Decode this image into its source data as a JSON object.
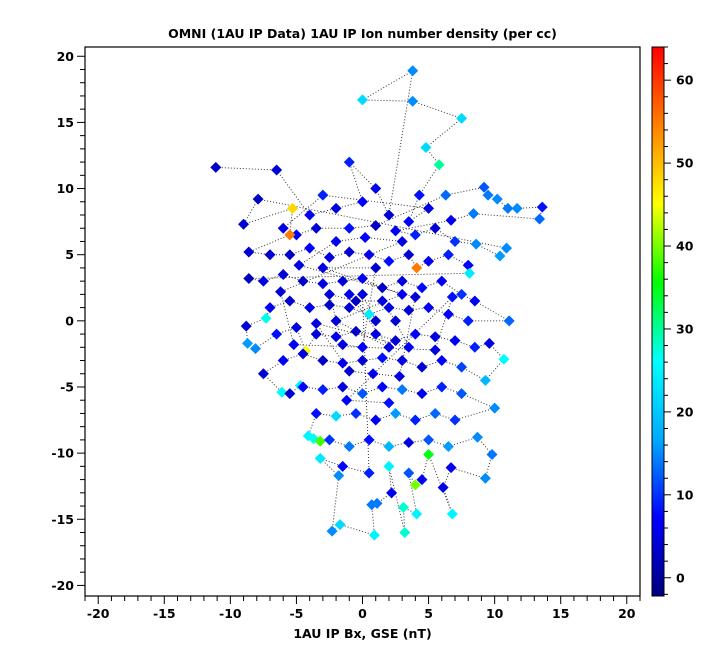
{
  "chart_data": {
    "type": "scatter",
    "title": "OMNI (1AU IP Data)  1AU IP Ion number density (per cc)",
    "xlabel": "1AU IP Bx, GSE (nT)",
    "ylabel": "",
    "xlim": [
      -21,
      21
    ],
    "ylim": [
      -20.8,
      20.7
    ],
    "xticks": [
      -20,
      -15,
      -10,
      -5,
      0,
      5,
      10,
      15,
      20
    ],
    "yticks": [
      -20,
      -15,
      -10,
      -5,
      0,
      5,
      10,
      15,
      20
    ],
    "grid": false,
    "connected": true,
    "colorbar": {
      "label": "",
      "range": [
        -2.2,
        64
      ],
      "ticks": [
        0,
        10,
        20,
        30,
        40,
        50,
        60
      ],
      "colormap": [
        "#00007f",
        "#0000ff",
        "#00aaff",
        "#00ffff",
        "#00ff00",
        "#ffff00",
        "#ff8000",
        "#ff0000"
      ]
    },
    "points_format": [
      "Bx_nT",
      "y",
      "density_per_cc"
    ],
    "points": [
      [
        -11.1,
        11.6,
        3
      ],
      [
        -6.5,
        11.4,
        4
      ],
      [
        -4,
        8,
        6
      ],
      [
        -2,
        8.5,
        5
      ],
      [
        0,
        9,
        7
      ],
      [
        -1,
        12,
        9
      ],
      [
        1,
        10,
        6
      ],
      [
        2,
        8,
        4
      ],
      [
        3.8,
        18.9,
        15
      ],
      [
        0,
        16.7,
        22
      ],
      [
        3.8,
        16.6,
        15
      ],
      [
        7.5,
        15.3,
        22
      ],
      [
        4.8,
        13.1,
        22
      ],
      [
        5.8,
        11.8,
        30
      ],
      [
        4.3,
        9.5,
        8
      ],
      [
        3.5,
        7.5,
        7
      ],
      [
        5,
        8.5,
        5
      ],
      [
        -3,
        9.5,
        9
      ],
      [
        -6,
        7,
        5
      ],
      [
        -5,
        6.5,
        6
      ],
      [
        -3.5,
        7,
        4
      ],
      [
        -1,
        7,
        8
      ],
      [
        1,
        7.2,
        3
      ],
      [
        6.3,
        9.5,
        13
      ],
      [
        9.2,
        10.1,
        12
      ],
      [
        9.5,
        9.5,
        14
      ],
      [
        10.2,
        9.2,
        15
      ],
      [
        11,
        8.5,
        14
      ],
      [
        11.7,
        8.5,
        15
      ],
      [
        13.6,
        8.6,
        8
      ],
      [
        13.4,
        7.7,
        13
      ],
      [
        8.4,
        8.1,
        14
      ],
      [
        6.7,
        7.6,
        6
      ],
      [
        2.5,
        6.8,
        6
      ],
      [
        4,
        6.5,
        9
      ],
      [
        5.5,
        7,
        4
      ],
      [
        7,
        6,
        10
      ],
      [
        8.6,
        5.8,
        15
      ],
      [
        10.4,
        4.9,
        16
      ],
      [
        10.9,
        5.5,
        15
      ],
      [
        -7.9,
        9.2,
        3
      ],
      [
        -9,
        7.3,
        4
      ],
      [
        -5.3,
        8.5,
        48
      ],
      [
        -5.5,
        6.5,
        55
      ],
      [
        -8.6,
        5.2,
        4
      ],
      [
        -7,
        5,
        4
      ],
      [
        -5.5,
        5,
        3
      ],
      [
        -4,
        5.5,
        7
      ],
      [
        -2.5,
        4.8,
        5
      ],
      [
        -1,
        5.2,
        4
      ],
      [
        0.5,
        5,
        6
      ],
      [
        2,
        4.5,
        8
      ],
      [
        3.5,
        5,
        4
      ],
      [
        4.1,
        4,
        55
      ],
      [
        5,
        4.5,
        6
      ],
      [
        6.5,
        5,
        9
      ],
      [
        8,
        4.2,
        7
      ],
      [
        8.1,
        3.6,
        24
      ],
      [
        -8.6,
        3.2,
        2
      ],
      [
        -7.5,
        3,
        5
      ],
      [
        -6,
        3.5,
        4
      ],
      [
        -4.5,
        3,
        3
      ],
      [
        -3,
        2.8,
        5
      ],
      [
        -1.5,
        3,
        4
      ],
      [
        0,
        3.2,
        6
      ],
      [
        1.5,
        2.5,
        3
      ],
      [
        3,
        3,
        5
      ],
      [
        4.5,
        2.5,
        7
      ],
      [
        6,
        3,
        6
      ],
      [
        7.5,
        2,
        10
      ],
      [
        8.5,
        1.5,
        6
      ],
      [
        11.1,
        0,
        13
      ],
      [
        8,
        0,
        9
      ],
      [
        6.5,
        0.5,
        7
      ],
      [
        5,
        1,
        6
      ],
      [
        3.5,
        0.8,
        4
      ],
      [
        2,
        1,
        5
      ],
      [
        0.5,
        0.5,
        24
      ],
      [
        -1,
        1,
        4
      ],
      [
        -2.5,
        1.2,
        3
      ],
      [
        -4,
        1,
        5
      ],
      [
        -5.5,
        1.5,
        4
      ],
      [
        -7,
        1,
        6
      ],
      [
        -7.3,
        0.2,
        27
      ],
      [
        -8.8,
        -0.4,
        4
      ],
      [
        -8.7,
        -1.7,
        16
      ],
      [
        -8.1,
        -2.1,
        15
      ],
      [
        -6.5,
        -1,
        8
      ],
      [
        -5,
        -0.5,
        5
      ],
      [
        -4.3,
        -2.3,
        45
      ],
      [
        -3.5,
        -1,
        4
      ],
      [
        -2,
        -1.2,
        6
      ],
      [
        -0.5,
        -0.8,
        3
      ],
      [
        1,
        -1,
        5
      ],
      [
        2.5,
        -1.5,
        4
      ],
      [
        4,
        -1,
        7
      ],
      [
        5.5,
        -1.2,
        5
      ],
      [
        7,
        -1.5,
        6
      ],
      [
        8.5,
        -2,
        9
      ],
      [
        9.6,
        -1.7,
        5
      ],
      [
        10.7,
        -2.9,
        26
      ],
      [
        9.3,
        -4.5,
        18
      ],
      [
        7.5,
        -3.5,
        11
      ],
      [
        6,
        -3,
        7
      ],
      [
        4.5,
        -3.5,
        4
      ],
      [
        3,
        -3,
        5
      ],
      [
        1.5,
        -2.8,
        8
      ],
      [
        0,
        -3,
        4
      ],
      [
        -1.5,
        -3.2,
        6
      ],
      [
        -3,
        -3,
        3
      ],
      [
        -4.5,
        -2.5,
        5
      ],
      [
        -6,
        -3,
        6
      ],
      [
        -7.5,
        -4,
        4
      ],
      [
        -6.1,
        -5.4,
        26
      ],
      [
        -5.5,
        -5.5,
        4
      ],
      [
        -4.7,
        -4.9,
        25
      ],
      [
        -4.5,
        -5,
        7
      ],
      [
        -3,
        -5.2,
        9
      ],
      [
        -1.5,
        -5,
        5
      ],
      [
        0,
        -5.5,
        12
      ],
      [
        1.5,
        -5,
        7
      ],
      [
        3,
        -5.2,
        14
      ],
      [
        4.5,
        -5.5,
        6
      ],
      [
        6,
        -5,
        9
      ],
      [
        7.5,
        -5.5,
        12
      ],
      [
        10,
        -6.6,
        15
      ],
      [
        7,
        -7.5,
        10
      ],
      [
        5.5,
        -7,
        13
      ],
      [
        4,
        -7.5,
        9
      ],
      [
        2.5,
        -7,
        16
      ],
      [
        1,
        -7.5,
        6
      ],
      [
        -0.5,
        -7,
        10
      ],
      [
        -2,
        -7.2,
        22
      ],
      [
        -3.5,
        -7,
        8
      ],
      [
        -4.1,
        -8.7,
        25
      ],
      [
        -3.7,
        -8.9,
        27
      ],
      [
        -3.2,
        -9.1,
        38
      ],
      [
        -2.5,
        -9,
        10
      ],
      [
        -1,
        -9.5,
        14
      ],
      [
        0.5,
        -9,
        8
      ],
      [
        2,
        -9.5,
        18
      ],
      [
        3.5,
        -9.2,
        5
      ],
      [
        5,
        -9,
        12
      ],
      [
        6.5,
        -9.5,
        16
      ],
      [
        8.7,
        -8.8,
        15
      ],
      [
        9.8,
        -10.1,
        14
      ],
      [
        9.3,
        -11.9,
        15
      ],
      [
        6.7,
        -11.1,
        6
      ],
      [
        6.1,
        -12.6,
        5
      ],
      [
        6.8,
        -14.6,
        25
      ],
      [
        5,
        -10.1,
        35
      ],
      [
        4.5,
        -12,
        6
      ],
      [
        4,
        -12.4,
        40
      ],
      [
        3.5,
        -11.5,
        12
      ],
      [
        4.1,
        -14.6,
        25
      ],
      [
        3.1,
        -14.1,
        28
      ],
      [
        3.2,
        -16,
        28
      ],
      [
        2,
        -11,
        25
      ],
      [
        2.2,
        -13,
        6
      ],
      [
        1.1,
        -13.8,
        14
      ],
      [
        0.7,
        -13.9,
        14
      ],
      [
        0.9,
        -16.2,
        25
      ],
      [
        -1.7,
        -15.4,
        22
      ],
      [
        -2.3,
        -15.9,
        15
      ],
      [
        -1.8,
        -11.7,
        15
      ],
      [
        -3.2,
        -10.4,
        24
      ],
      [
        -1.5,
        -11,
        7
      ],
      [
        0.5,
        -11.5,
        9
      ],
      [
        0,
        2,
        5
      ],
      [
        1,
        0,
        4
      ],
      [
        -1,
        2,
        6
      ],
      [
        2,
        -2,
        5
      ],
      [
        -2,
        0,
        4
      ],
      [
        3,
        2,
        6
      ],
      [
        -3,
        4,
        5
      ],
      [
        1,
        4,
        3
      ],
      [
        0,
        -2,
        7
      ],
      [
        -1.5,
        -1.8,
        5
      ],
      [
        -2.5,
        2,
        4
      ],
      [
        -0.5,
        1.5,
        3
      ],
      [
        1.5,
        1.5,
        5
      ],
      [
        2.5,
        0,
        4
      ],
      [
        3.5,
        -2,
        6
      ],
      [
        -3.5,
        -0.2,
        5
      ],
      [
        -1,
        -3.8,
        4
      ],
      [
        0.8,
        -4,
        6
      ],
      [
        2.8,
        -4.2,
        5
      ],
      [
        4,
        1.8,
        4
      ],
      [
        -4.8,
        4.2,
        5
      ],
      [
        -2,
        6,
        6
      ],
      [
        0.2,
        6.3,
        7
      ],
      [
        3,
        6,
        5
      ],
      [
        -6.2,
        2.2,
        4
      ],
      [
        -5.2,
        -1.8,
        6
      ],
      [
        5.5,
        -2.2,
        5
      ],
      [
        6.8,
        1.8,
        8
      ],
      [
        -1.2,
        -6,
        7
      ],
      [
        2,
        -6.2,
        8
      ]
    ]
  }
}
